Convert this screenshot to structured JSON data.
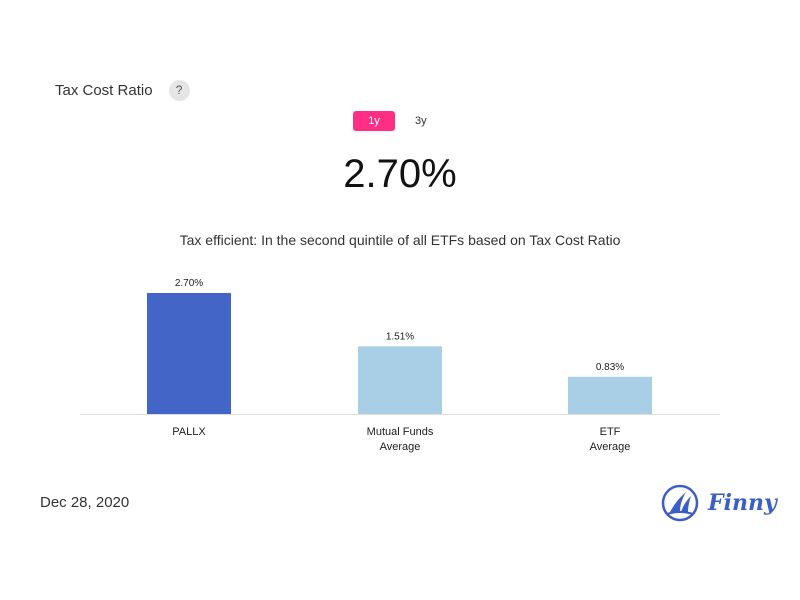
{
  "header": {
    "metric_title": "Tax Cost Ratio",
    "help_label": "?"
  },
  "tabs": [
    {
      "label": "1y",
      "active": true
    },
    {
      "label": "3y",
      "active": false
    }
  ],
  "main_value": "2.70%",
  "subtitle": "Tax efficient: In the second quintile of all ETFs based on Tax Cost Ratio",
  "chart_data": {
    "type": "bar",
    "categories": [
      [
        "PALLX"
      ],
      [
        "Mutual Funds",
        "Average"
      ],
      [
        "ETF",
        "Average"
      ]
    ],
    "values": [
      2.7,
      1.51,
      0.83
    ],
    "data_labels": [
      "2.70%",
      "1.51%",
      "0.83%"
    ],
    "colors": [
      "#4465c8",
      "#a8cfe6",
      "#a8cfe6"
    ],
    "ylim": [
      0,
      2.7
    ],
    "grid": false
  },
  "footer": {
    "date": "Dec 28, 2020",
    "brand": "Finny"
  },
  "colors": {
    "accent": "#ff2e85",
    "brand": "#3b5fc4"
  }
}
